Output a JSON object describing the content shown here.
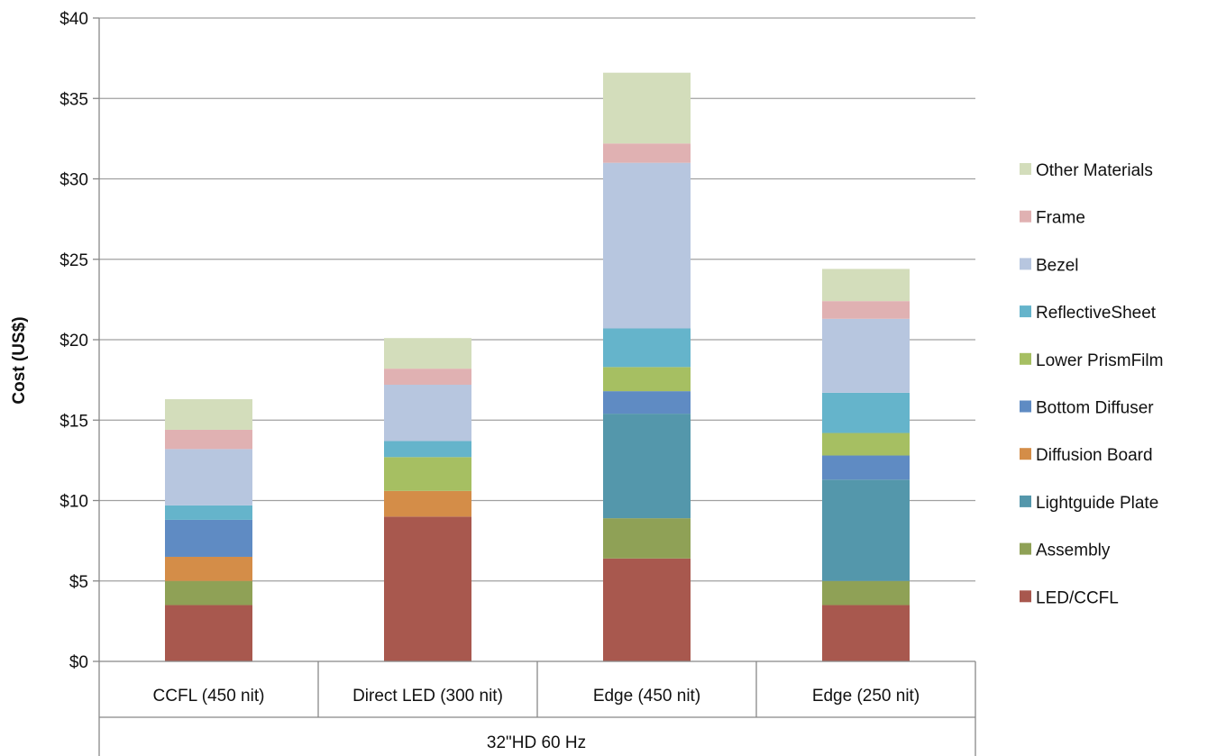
{
  "chart_data": {
    "type": "bar",
    "stacked": true,
    "categories": [
      "CCFL (450 nit)",
      "Direct LED (300 nit)",
      "Edge (450 nit)",
      "Edge (250 nit)"
    ],
    "group_label": "32\"HD 60 Hz",
    "ylabel": "Cost (US$)",
    "xlabel": "",
    "ylim": [
      0,
      40
    ],
    "yticks": [
      "$0",
      "$5",
      "$10",
      "$15",
      "$20",
      "$25",
      "$30",
      "$35",
      "$40"
    ],
    "grid": true,
    "legend_position": "right",
    "series": [
      {
        "name": "LED/CCFL",
        "color": "#a8584e",
        "values": [
          3.5,
          9.0,
          6.4,
          3.5
        ]
      },
      {
        "name": "Assembly",
        "color": "#8fa156",
        "values": [
          1.5,
          0,
          2.5,
          1.5
        ]
      },
      {
        "name": "Lightguide Plate",
        "color": "#5497ab",
        "values": [
          0,
          0,
          6.5,
          6.3
        ]
      },
      {
        "name": "Diffusion Board",
        "color": "#d48d48",
        "values": [
          1.5,
          1.6,
          0,
          0
        ]
      },
      {
        "name": "Bottom Diffuser",
        "color": "#5f8bc3",
        "values": [
          2.3,
          0,
          1.4,
          1.5
        ]
      },
      {
        "name": "Lower PrismFilm",
        "color": "#a6bf62",
        "values": [
          0,
          2.1,
          1.5,
          1.4
        ]
      },
      {
        "name": "ReflectiveSheet",
        "color": "#65b4cb",
        "values": [
          0.9,
          1.0,
          2.4,
          2.5
        ]
      },
      {
        "name": "Bezel",
        "color": "#b7c6df",
        "values": [
          3.5,
          3.5,
          10.3,
          4.6
        ]
      },
      {
        "name": "Frame",
        "color": "#e0b1b2",
        "values": [
          1.2,
          1.0,
          1.2,
          1.1
        ]
      },
      {
        "name": "Other Materials",
        "color": "#d3ddbb",
        "values": [
          1.9,
          1.9,
          4.4,
          2.0
        ]
      }
    ]
  }
}
